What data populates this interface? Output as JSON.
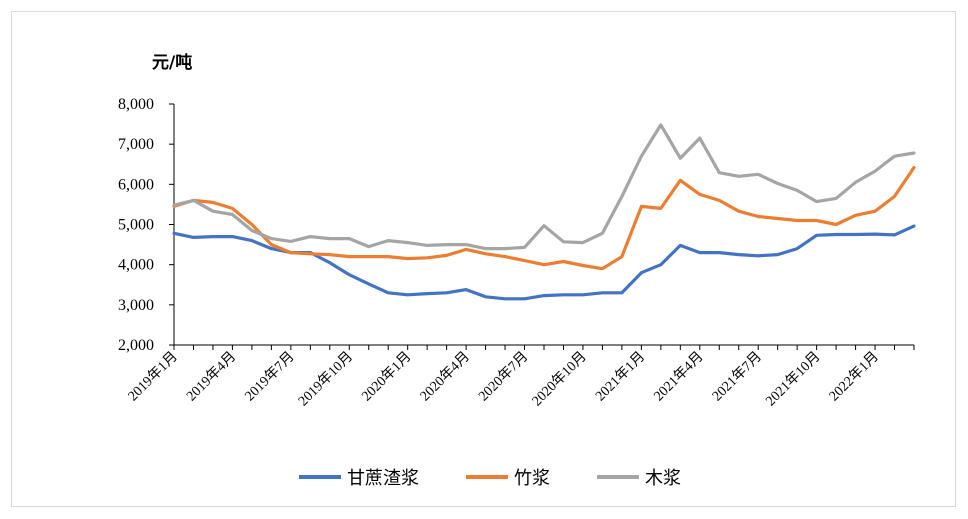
{
  "chart_data": {
    "type": "line",
    "ylabel": "元/吨",
    "ylim": [
      2000,
      8000
    ],
    "yticks": [
      "2,000",
      "3,000",
      "4,000",
      "5,000",
      "6,000",
      "7,000",
      "8,000"
    ],
    "x_tick_labels": [
      "2019年1月",
      "2019年4月",
      "2019年7月",
      "2019年10月",
      "2020年1月",
      "2020年4月",
      "2020年7月",
      "2020年10月",
      "2021年1月",
      "2021年4月",
      "2021年7月",
      "2021年10月",
      "2022年1月"
    ],
    "x": [
      "2019-01",
      "2019-02",
      "2019-03",
      "2019-04",
      "2019-05",
      "2019-06",
      "2019-07",
      "2019-08",
      "2019-09",
      "2019-10",
      "2019-11",
      "2019-12",
      "2020-01",
      "2020-02",
      "2020-03",
      "2020-04",
      "2020-05",
      "2020-06",
      "2020-07",
      "2020-08",
      "2020-09",
      "2020-10",
      "2020-11",
      "2020-12",
      "2021-01",
      "2021-02",
      "2021-03",
      "2021-04",
      "2021-05",
      "2021-06",
      "2021-07",
      "2021-08",
      "2021-09",
      "2021-10",
      "2021-11",
      "2021-12",
      "2022-01",
      "2022-02",
      "2022-03"
    ],
    "grid": false,
    "legend_position": "bottom",
    "series": [
      {
        "name": "甘蔗渣浆",
        "color": "#4472c4",
        "values": [
          4780,
          4680,
          4700,
          4700,
          4600,
          4400,
          4300,
          4300,
          4050,
          3750,
          3520,
          3300,
          3250,
          3280,
          3300,
          3380,
          3200,
          3150,
          3150,
          3230,
          3250,
          3250,
          3300,
          3300,
          3800,
          4000,
          4480,
          4300,
          4300,
          4250,
          4220,
          4250,
          4400,
          4730,
          4750,
          4750,
          4760,
          4740,
          4960
        ]
      },
      {
        "name": "竹浆",
        "color": "#ed7d31",
        "values": [
          5450,
          5600,
          5550,
          5400,
          5000,
          4500,
          4300,
          4270,
          4250,
          4200,
          4200,
          4200,
          4150,
          4170,
          4230,
          4380,
          4270,
          4200,
          4100,
          4000,
          4080,
          3980,
          3900,
          4200,
          5450,
          5400,
          6100,
          5750,
          5600,
          5330,
          5200,
          5150,
          5100,
          5100,
          5000,
          5230,
          5330,
          5700,
          6420
        ]
      },
      {
        "name": "木浆",
        "color": "#a5a5a5",
        "values": [
          5480,
          5600,
          5330,
          5250,
          4850,
          4650,
          4580,
          4700,
          4650,
          4650,
          4450,
          4600,
          4550,
          4480,
          4500,
          4500,
          4400,
          4400,
          4430,
          4970,
          4570,
          4550,
          4780,
          5700,
          6700,
          7480,
          6650,
          7150,
          6290,
          6200,
          6250,
          6020,
          5850,
          5570,
          5650,
          6050,
          6330,
          6700,
          6780
        ]
      }
    ]
  }
}
